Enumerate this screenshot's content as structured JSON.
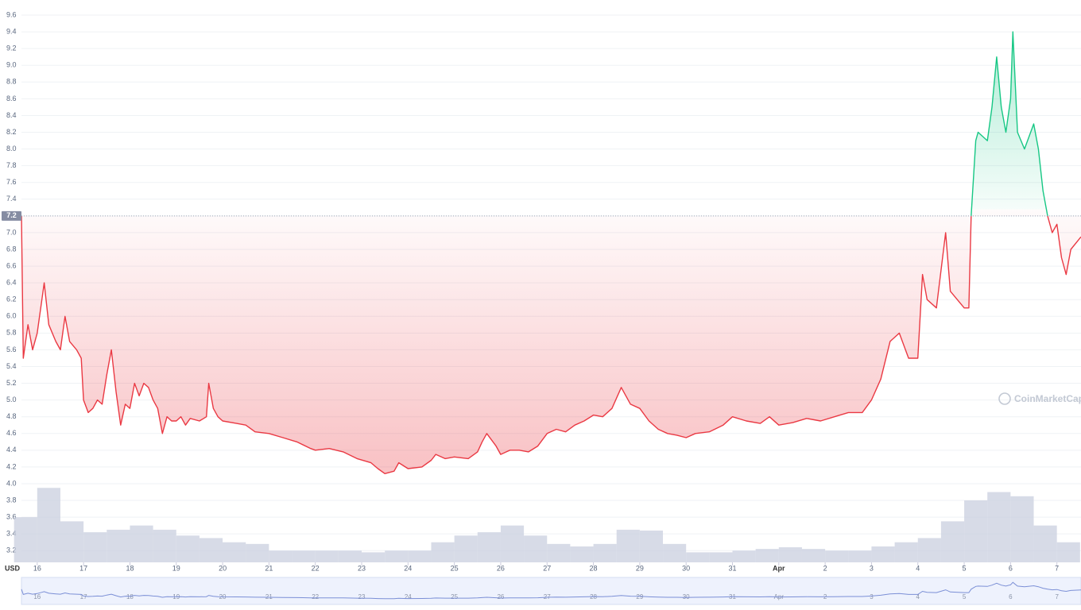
{
  "chart_data": {
    "type": "line",
    "currency_label": "USD",
    "watermark": "CoinMarketCap",
    "baseline": 7.2,
    "colors": {
      "up": "#16c784",
      "down": "#ea3943",
      "volume": "#c9cfdf"
    },
    "grid": true,
    "xlim": [
      -0.34,
      22.52
    ],
    "ylim": [
      3.06,
      9.7
    ],
    "xticks": [
      {
        "value": 0,
        "label": "16"
      },
      {
        "value": 1,
        "label": "17"
      },
      {
        "value": 2,
        "label": "18"
      },
      {
        "value": 3,
        "label": "19"
      },
      {
        "value": 4,
        "label": "20"
      },
      {
        "value": 5,
        "label": "21"
      },
      {
        "value": 6,
        "label": "22"
      },
      {
        "value": 7,
        "label": "23"
      },
      {
        "value": 8,
        "label": "24"
      },
      {
        "value": 9,
        "label": "25"
      },
      {
        "value": 10,
        "label": "26"
      },
      {
        "value": 11,
        "label": "27"
      },
      {
        "value": 12,
        "label": "28"
      },
      {
        "value": 13,
        "label": "29"
      },
      {
        "value": 14,
        "label": "30"
      },
      {
        "value": 15,
        "label": "31"
      },
      {
        "value": 16,
        "label": "Apr"
      },
      {
        "value": 17,
        "label": "2"
      },
      {
        "value": 18,
        "label": "3"
      },
      {
        "value": 19,
        "label": "4"
      },
      {
        "value": 20,
        "label": "5"
      },
      {
        "value": 21,
        "label": "6"
      },
      {
        "value": 22,
        "label": "7"
      }
    ],
    "yticks": [
      3.2,
      3.4,
      3.6,
      3.8,
      {
        "value": 4,
        "label": "4.0"
      },
      4.2,
      4.4,
      4.6,
      4.8,
      {
        "value": 5,
        "label": "5.0"
      },
      5.2,
      5.4,
      5.6,
      5.8,
      {
        "value": 6,
        "label": "6.0"
      },
      6.2,
      6.4,
      6.6,
      6.8,
      {
        "value": 7,
        "label": "7.0"
      },
      7.2,
      7.4,
      7.6,
      7.8,
      {
        "value": 8,
        "label": "8.0"
      },
      8.2,
      8.4,
      8.6,
      8.8,
      {
        "value": 9,
        "label": "9.0"
      },
      9.2,
      9.4,
      9.6
    ],
    "x": [
      -0.34,
      -0.3,
      -0.2,
      -0.1,
      0,
      0.1,
      0.15,
      0.25,
      0.4,
      0.5,
      0.6,
      0.7,
      0.85,
      0.95,
      1,
      1.1,
      1.2,
      1.3,
      1.4,
      1.5,
      1.6,
      1.7,
      1.8,
      1.9,
      2,
      2.1,
      2.2,
      2.3,
      2.4,
      2.5,
      2.6,
      2.7,
      2.8,
      2.9,
      3,
      3.1,
      3.2,
      3.3,
      3.5,
      3.65,
      3.7,
      3.8,
      3.9,
      4,
      4.3,
      4.5,
      4.7,
      5,
      5.3,
      5.6,
      5.9,
      6,
      6.3,
      6.6,
      6.9,
      7.2,
      7.35,
      7.5,
      7.7,
      7.8,
      8,
      8.3,
      8.5,
      8.6,
      8.8,
      9,
      9.3,
      9.5,
      9.6,
      9.7,
      9.9,
      10,
      10.2,
      10.4,
      10.6,
      10.8,
      11,
      11.2,
      11.4,
      11.6,
      11.8,
      12,
      12.2,
      12.4,
      12.6,
      12.8,
      13,
      13.2,
      13.4,
      13.6,
      13.8,
      14,
      14.2,
      14.5,
      14.8,
      15,
      15.3,
      15.6,
      15.8,
      16,
      16.3,
      16.6,
      16.9,
      17.2,
      17.5,
      17.8,
      18,
      18.2,
      18.4,
      18.6,
      18.8,
      19,
      19.1,
      19.2,
      19.4,
      19.6,
      19.7,
      20,
      20.1,
      20.15,
      20.25,
      20.3,
      20.5,
      20.6,
      20.7,
      20.8,
      20.9,
      21,
      21.05,
      21.15,
      21.3,
      21.5,
      21.6,
      21.7,
      21.8,
      21.9,
      22,
      22.1,
      22.2,
      22.3,
      22.52
    ],
    "values": [
      7.2,
      5.5,
      5.9,
      5.6,
      5.8,
      6.2,
      6.4,
      5.9,
      5.7,
      5.6,
      6.0,
      5.7,
      5.6,
      5.5,
      5.0,
      4.85,
      4.9,
      5.0,
      4.95,
      5.3,
      5.6,
      5.1,
      4.7,
      4.95,
      4.9,
      5.2,
      5.05,
      5.2,
      5.15,
      5.0,
      4.9,
      4.6,
      4.8,
      4.75,
      4.75,
      4.8,
      4.7,
      4.78,
      4.75,
      4.8,
      5.2,
      4.9,
      4.8,
      4.75,
      4.72,
      4.7,
      4.62,
      4.6,
      4.55,
      4.5,
      4.42,
      4.4,
      4.42,
      4.38,
      4.3,
      4.25,
      4.18,
      4.12,
      4.15,
      4.25,
      4.18,
      4.2,
      4.28,
      4.35,
      4.3,
      4.32,
      4.3,
      4.38,
      4.5,
      4.6,
      4.45,
      4.35,
      4.4,
      4.4,
      4.38,
      4.45,
      4.6,
      4.65,
      4.62,
      4.7,
      4.75,
      4.82,
      4.8,
      4.9,
      5.15,
      4.95,
      4.9,
      4.75,
      4.65,
      4.6,
      4.58,
      4.55,
      4.6,
      4.62,
      4.7,
      4.8,
      4.75,
      4.72,
      4.8,
      4.7,
      4.73,
      4.78,
      4.75,
      4.8,
      4.85,
      4.85,
      5.0,
      5.25,
      5.7,
      5.8,
      5.5,
      5.5,
      6.5,
      6.2,
      6.1,
      7.0,
      6.3,
      6.1,
      6.1,
      7.2,
      8.1,
      8.2,
      8.1,
      8.5,
      9.1,
      8.5,
      8.2,
      8.6,
      9.4,
      8.2,
      8.0,
      8.3,
      8.0,
      7.5,
      7.2,
      7.0,
      7.1,
      6.7,
      6.5,
      6.8,
      6.95
    ],
    "volume": {
      "x": [
        -0.25,
        0.25,
        0.75,
        1.25,
        1.75,
        2.25,
        2.75,
        3.25,
        3.75,
        4.25,
        4.75,
        5.25,
        5.75,
        6.25,
        6.75,
        7.25,
        7.75,
        8.25,
        8.75,
        9.25,
        9.75,
        10.25,
        10.75,
        11.25,
        11.75,
        12.25,
        12.75,
        13.25,
        13.75,
        14.25,
        14.75,
        15.25,
        15.75,
        16.25,
        16.75,
        17.25,
        17.75,
        18.25,
        18.75,
        19.25,
        19.75,
        20.25,
        20.75,
        21.25,
        21.75,
        22.25
      ],
      "values": [
        3.6,
        3.95,
        3.55,
        3.42,
        3.45,
        3.5,
        3.45,
        3.38,
        3.35,
        3.3,
        3.28,
        3.2,
        3.2,
        3.2,
        3.2,
        3.18,
        3.2,
        3.2,
        3.3,
        3.38,
        3.42,
        3.5,
        3.38,
        3.28,
        3.25,
        3.28,
        3.45,
        3.44,
        3.28,
        3.18,
        3.18,
        3.2,
        3.22,
        3.24,
        3.22,
        3.2,
        3.2,
        3.25,
        3.3,
        3.35,
        3.55,
        3.8,
        3.9,
        3.85,
        3.5,
        3.3
      ]
    }
  }
}
